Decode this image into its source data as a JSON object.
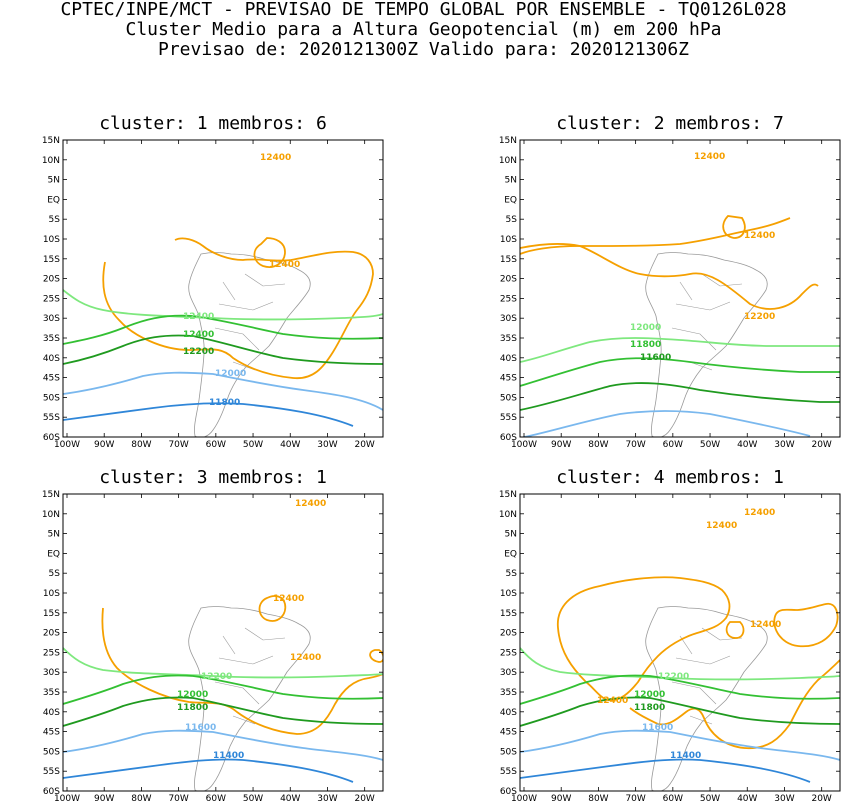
{
  "header": {
    "line1": "CPTEC/INPE/MCT - PREVISAO DE TEMPO GLOBAL POR ENSEMBLE - TQ0126L028",
    "line2": "Cluster Medio para a Altura Geopotencial (m) em 200 hPa",
    "line3": "Previsao de: 2020121300Z    Valido para: 2020121306Z"
  },
  "axes": {
    "lat_labels": [
      "15N",
      "10N",
      "5N",
      "EQ",
      "5S",
      "10S",
      "15S",
      "20S",
      "25S",
      "30S",
      "35S",
      "40S",
      "45S",
      "50S",
      "55S",
      "60S"
    ],
    "lon_labels": [
      "100W",
      "90W",
      "80W",
      "70W",
      "60W",
      "50W",
      "40W",
      "30W",
      "20W"
    ]
  },
  "colors": {
    "c12400": "#f5a000",
    "c12200": "#7ee87e",
    "c12000": "#33c033",
    "c11800": "#1f9a1f",
    "c11600": "#7ab8ee",
    "c11400": "#2f86d8",
    "coast": "#999999"
  },
  "panels": [
    {
      "title": "cluster: 1   membros: 6",
      "labels": [
        "12400",
        "12400",
        "12400",
        "12400",
        "12200",
        "12000",
        "11800",
        "11600",
        "11400"
      ]
    },
    {
      "title": "cluster: 2   membros: 7",
      "labels": [
        "12400",
        "12400",
        "12200",
        "12000",
        "11800",
        "11600"
      ]
    },
    {
      "title": "cluster: 3   membros: 1",
      "labels": [
        "12400",
        "12400",
        "12400",
        "12200",
        "12000",
        "11800",
        "11600",
        "11400"
      ]
    },
    {
      "title": "cluster: 4   membros: 1",
      "labels": [
        "12400",
        "12400",
        "12400",
        "12400",
        "12200",
        "12000",
        "11800",
        "11600",
        "11400"
      ]
    }
  ]
}
